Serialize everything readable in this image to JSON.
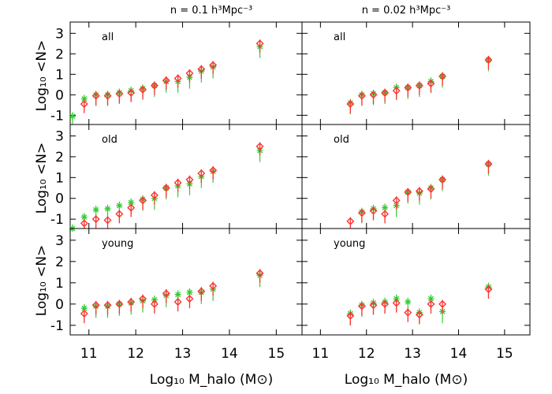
{
  "xlabel": "Log₁₀ M_halo (M⊙)",
  "ylabel": "Log₁₀ <N>",
  "columns": [
    {
      "title": "n = 0.1 h³Mpc⁻³"
    },
    {
      "title": "n = 0.02 h³Mpc⁻³"
    }
  ],
  "rows": [
    "all",
    "old",
    "young"
  ],
  "colors": {
    "red_series": "#ff3333",
    "green_series": "#33cc33"
  },
  "chart_data": {
    "type": "scatter",
    "xlim": [
      10.6,
      15.55
    ],
    "ylim": [
      -1.45,
      3.55
    ],
    "x_ticks": [
      "11",
      "12",
      "13",
      "14",
      "15"
    ],
    "y_ticks": [
      "-1",
      "0",
      "1",
      "2",
      "3"
    ],
    "x": [
      10.65,
      10.9,
      11.15,
      11.4,
      11.65,
      11.9,
      12.15,
      12.4,
      12.65,
      12.9,
      13.15,
      13.4,
      13.65,
      14.65
    ],
    "panels": [
      {
        "row": "all",
        "col": 0,
        "red": [
          null,
          -0.45,
          -0.05,
          -0.05,
          0.05,
          0.1,
          0.25,
          0.45,
          0.7,
          0.8,
          1.05,
          1.25,
          1.45,
          2.5
        ],
        "green": [
          -1.05,
          -0.2,
          0.0,
          0.0,
          0.1,
          0.2,
          0.3,
          0.45,
          0.65,
          0.65,
          0.85,
          1.15,
          1.35,
          2.35
        ]
      },
      {
        "row": "all",
        "col": 1,
        "red": [
          null,
          null,
          null,
          null,
          -0.45,
          -0.05,
          0.0,
          0.1,
          0.2,
          0.35,
          0.45,
          0.55,
          0.9,
          1.7
        ],
        "green": [
          null,
          null,
          null,
          null,
          -0.4,
          0.0,
          0.05,
          0.1,
          0.35,
          0.35,
          0.45,
          0.65,
          0.9,
          1.7
        ]
      },
      {
        "row": "old",
        "col": 0,
        "red": [
          null,
          -1.2,
          -1.0,
          -1.05,
          -0.75,
          -0.45,
          -0.1,
          0.15,
          0.5,
          0.75,
          0.9,
          1.2,
          1.35,
          2.5
        ],
        "green": [
          -1.45,
          -0.9,
          -0.55,
          -0.5,
          -0.35,
          -0.2,
          -0.05,
          0.0,
          0.5,
          0.6,
          0.7,
          1.05,
          1.3,
          2.3
        ]
      },
      {
        "row": "old",
        "col": 1,
        "red": [
          null,
          null,
          null,
          null,
          -1.1,
          -0.7,
          -0.6,
          -0.75,
          -0.1,
          0.3,
          0.35,
          0.45,
          0.9,
          1.65
        ],
        "green": [
          null,
          null,
          null,
          null,
          null,
          -0.65,
          -0.5,
          -0.45,
          -0.35,
          0.3,
          0.25,
          0.5,
          0.9,
          1.65
        ]
      },
      {
        "row": "young",
        "col": 0,
        "red": [
          null,
          -0.45,
          -0.05,
          -0.05,
          0.0,
          0.1,
          0.25,
          0.0,
          0.5,
          0.1,
          0.25,
          0.6,
          0.85,
          1.45
        ],
        "green": [
          null,
          -0.2,
          -0.1,
          -0.1,
          0.0,
          0.05,
          0.15,
          0.2,
          0.4,
          0.45,
          0.55,
          0.55,
          0.7,
          1.35
        ]
      },
      {
        "row": "young",
        "col": 1,
        "red": [
          null,
          null,
          null,
          null,
          -0.55,
          -0.1,
          -0.05,
          0.0,
          0.05,
          -0.4,
          -0.5,
          0.0,
          0.0,
          0.7
        ],
        "green": [
          null,
          null,
          null,
          null,
          -0.45,
          -0.05,
          0.05,
          0.1,
          0.25,
          0.1,
          -0.4,
          0.25,
          -0.35,
          0.8
        ]
      }
    ]
  }
}
